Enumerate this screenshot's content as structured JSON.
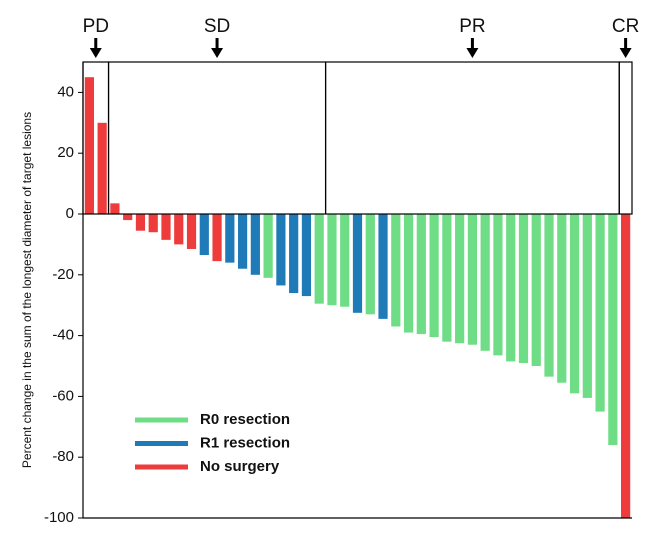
{
  "chart_data": {
    "type": "bar",
    "ylabel": "Percent change in the sum of the longest diameter of target lesions",
    "ylim": [
      -100,
      50
    ],
    "yticks": [
      -100,
      -80,
      -60,
      -40,
      -20,
      0,
      20,
      40
    ],
    "response_groups": [
      {
        "label": "PD",
        "count": 2
      },
      {
        "label": "SD",
        "count": 17
      },
      {
        "label": "PR",
        "count": 23
      },
      {
        "label": "CR",
        "count": 1
      }
    ],
    "series": [
      {
        "name": "R0 resection",
        "color": "#6fdc86",
        "values": [
          null,
          null,
          null,
          null,
          null,
          null,
          null,
          null,
          null,
          null,
          null,
          null,
          null,
          null,
          -21,
          null,
          null,
          null,
          -29.5,
          -30,
          -30.5,
          null,
          -33,
          null,
          -37,
          -39,
          -39.5,
          -40.5,
          -42,
          -42.5,
          -43,
          -45,
          -46.5,
          -48.5,
          -49,
          -50,
          -53.5,
          -55.5,
          -59,
          -60.5,
          -65,
          -76,
          null
        ]
      },
      {
        "name": "R1 resection",
        "color": "#1f7ab8",
        "values": [
          null,
          null,
          null,
          null,
          null,
          null,
          null,
          null,
          null,
          -13.5,
          null,
          -16,
          -18,
          -20,
          null,
          -23.5,
          -26,
          -27,
          null,
          null,
          null,
          -32.5,
          null,
          -34.5,
          null,
          null,
          null,
          null,
          null,
          null,
          null,
          null,
          null,
          null,
          null,
          null,
          null,
          null,
          null,
          null,
          null,
          null,
          null
        ]
      },
      {
        "name": "No surgery",
        "color": "#ee3b3b",
        "values": [
          45,
          30,
          3.5,
          -2,
          -5.5,
          -6,
          -8.5,
          -10,
          -11.5,
          null,
          -15.5,
          null,
          null,
          null,
          null,
          null,
          null,
          null,
          null,
          null,
          null,
          null,
          null,
          null,
          null,
          null,
          null,
          null,
          null,
          null,
          null,
          null,
          null,
          null,
          null,
          null,
          null,
          null,
          null,
          null,
          null,
          null,
          -100
        ]
      }
    ]
  }
}
